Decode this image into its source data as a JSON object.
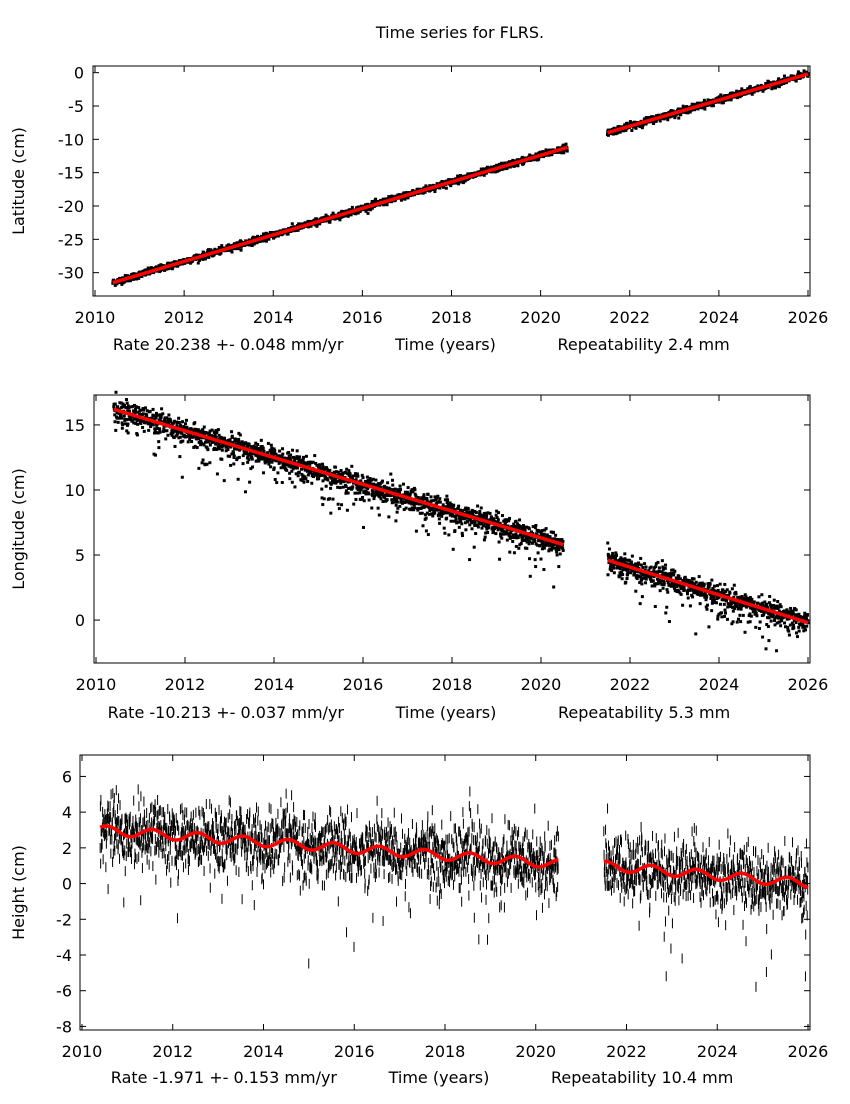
{
  "title": "Time series for FLRS.",
  "chart_data": [
    {
      "type": "scatter",
      "ylabel": "Latitude (cm)",
      "rate_text": "Rate 20.238 +- 0.048 mm/yr",
      "xlabel": "Time (years)",
      "repeat_text": "Repeatability 2.4 mm",
      "xlim": [
        2010,
        2026
      ],
      "ylim": [
        -33.5,
        1
      ],
      "xticks": [
        "2010",
        "2012",
        "2014",
        "2016",
        "2018",
        "2020",
        "2022",
        "2024",
        "2026"
      ],
      "yticks": [
        "0",
        "-5",
        "-10",
        "-15",
        "-20",
        "-25",
        "-30"
      ],
      "fit_segments": [
        [
          [
            2010.4,
            -31.5
          ],
          [
            2020.6,
            -11.2
          ]
        ],
        [
          [
            2021.5,
            -9.0
          ],
          [
            2026.0,
            -0.2
          ]
        ]
      ],
      "scatter_sd": 0.25,
      "error_bars": false,
      "fit_color": "#ff0000",
      "point_color": "#000000"
    },
    {
      "type": "scatter",
      "ylabel": "Longitude (cm)",
      "rate_text": "Rate -10.213 +- 0.037 mm/yr",
      "xlabel": "Time (years)",
      "repeat_text": "Repeatability 5.3 mm",
      "xlim": [
        2010,
        2026
      ],
      "ylim": [
        -3.3,
        17.3
      ],
      "xticks": [
        "2010",
        "2012",
        "2014",
        "2016",
        "2018",
        "2020",
        "2022",
        "2024",
        "2026"
      ],
      "yticks": [
        "15",
        "10",
        "5",
        "0"
      ],
      "fit_segments": [
        [
          [
            2010.4,
            16.2
          ],
          [
            2020.5,
            5.8
          ]
        ],
        [
          [
            2021.5,
            4.6
          ],
          [
            2026.0,
            -0.2
          ]
        ]
      ],
      "scatter_sd": 0.4,
      "error_bars": false,
      "fit_color": "#ff0000",
      "point_color": "#000000"
    },
    {
      "type": "scatter",
      "ylabel": "Height (cm)",
      "rate_text": "Rate -1.971 +- 0.153 mm/yr",
      "xlabel": "Time (years)",
      "repeat_text": "Repeatability 10.4 mm",
      "xlim": [
        2010,
        2026
      ],
      "ylim": [
        -8.2,
        7.2
      ],
      "xticks": [
        "2010",
        "2012",
        "2014",
        "2016",
        "2018",
        "2020",
        "2022",
        "2024",
        "2026"
      ],
      "yticks": [
        "6",
        "4",
        "2",
        "0",
        "-2",
        "-4",
        "-6",
        "-8"
      ],
      "fit_segments": [
        [
          [
            2010.4,
            3.0
          ],
          [
            2020.5,
            1.1
          ]
        ],
        [
          [
            2021.5,
            1.0
          ],
          [
            2026.0,
            0.0
          ]
        ]
      ],
      "seasonal_amplitude": 0.25,
      "scatter_sd": 0.9,
      "error_bars": true,
      "fit_color": "#ff0000",
      "point_color": "#000000"
    }
  ]
}
